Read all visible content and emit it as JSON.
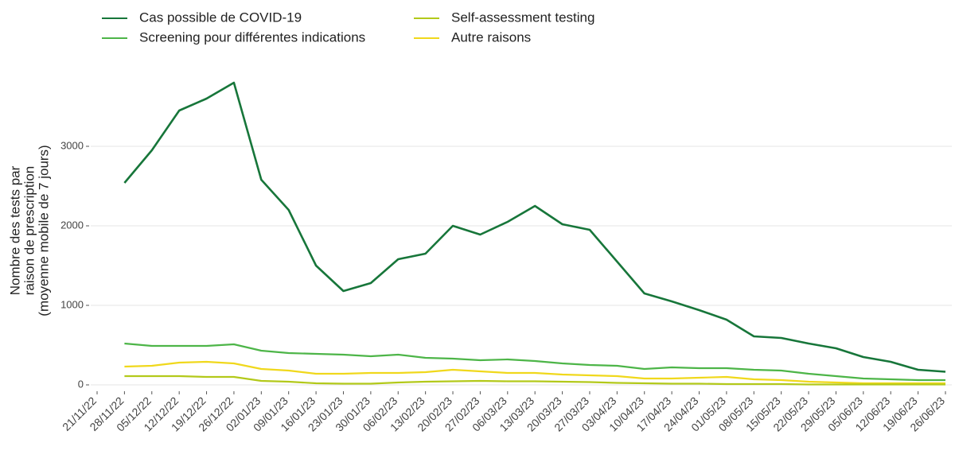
{
  "chart_data": {
    "type": "line",
    "y_label": [
      "Nombre des tests par",
      "raison de prescription",
      "(moyenne mobile de 7 jours)"
    ],
    "legend": "top",
    "grid": true,
    "x": [
      "28/11/22",
      "05/12/22",
      "12/12/22",
      "19/12/22",
      "26/12/22",
      "02/01/23",
      "09/01/23",
      "16/01/23",
      "23/01/23",
      "30/01/23",
      "06/02/23",
      "13/02/23",
      "20/02/23",
      "27/02/23",
      "06/03/23",
      "13/03/23",
      "20/03/23",
      "27/03/23",
      "03/04/23",
      "10/04/23",
      "17/04/23",
      "24/04/23",
      "01/05/23",
      "08/05/23",
      "15/05/23",
      "22/05/23",
      "29/05/23",
      "05/06/23",
      "12/06/23",
      "19/06/23",
      "26/06/23"
    ],
    "xlim": [
      "21/11/22",
      "26/06/23"
    ],
    "xticks": [
      "21/11/22",
      "28/11/22",
      "05/12/22",
      "12/12/22",
      "19/12/22",
      "26/12/22",
      "02/01/23",
      "09/01/23",
      "16/01/23",
      "23/01/23",
      "30/01/23",
      "06/02/23",
      "13/02/23",
      "20/02/23",
      "27/02/23",
      "06/03/23",
      "13/03/23",
      "20/03/23",
      "27/03/23",
      "03/04/23",
      "10/04/23",
      "17/04/23",
      "24/04/23",
      "01/05/23",
      "08/05/23",
      "15/05/23",
      "22/05/23",
      "29/05/23",
      "05/06/23",
      "12/06/23",
      "19/06/23",
      "26/06/23"
    ],
    "ylim": [
      -70,
      3900
    ],
    "yticks": [
      0,
      1000,
      2000,
      3000
    ],
    "series": [
      {
        "name": "Cas possible de COVID-19",
        "color": "#17763a",
        "values": [
          2540,
          2950,
          3450,
          3600,
          3800,
          2580,
          2200,
          1500,
          1180,
          1280,
          1580,
          1650,
          2000,
          1890,
          2050,
          2250,
          2020,
          1950,
          1550,
          1150,
          1050,
          940,
          820,
          610,
          590,
          520,
          460,
          350,
          290,
          190,
          165
        ]
      },
      {
        "name": "Screening pour différentes indications",
        "color": "#4db548",
        "values": [
          520,
          490,
          490,
          490,
          510,
          430,
          400,
          390,
          380,
          360,
          380,
          340,
          330,
          310,
          320,
          300,
          270,
          250,
          240,
          200,
          220,
          210,
          210,
          190,
          180,
          140,
          110,
          80,
          70,
          60,
          60
        ]
      },
      {
        "name": "Self-assessment testing",
        "color": "#b3c91a",
        "values": [
          110,
          110,
          110,
          100,
          100,
          50,
          40,
          20,
          15,
          15,
          30,
          40,
          45,
          50,
          45,
          45,
          40,
          35,
          25,
          20,
          15,
          15,
          10,
          10,
          10,
          5,
          5,
          5,
          5,
          5,
          5
        ]
      },
      {
        "name": "Autre raisons",
        "color": "#f0d81c",
        "values": [
          230,
          240,
          280,
          290,
          270,
          200,
          180,
          140,
          140,
          150,
          150,
          160,
          190,
          170,
          150,
          150,
          130,
          120,
          110,
          80,
          80,
          90,
          100,
          70,
          60,
          40,
          30,
          20,
          20,
          20,
          20
        ]
      }
    ]
  }
}
